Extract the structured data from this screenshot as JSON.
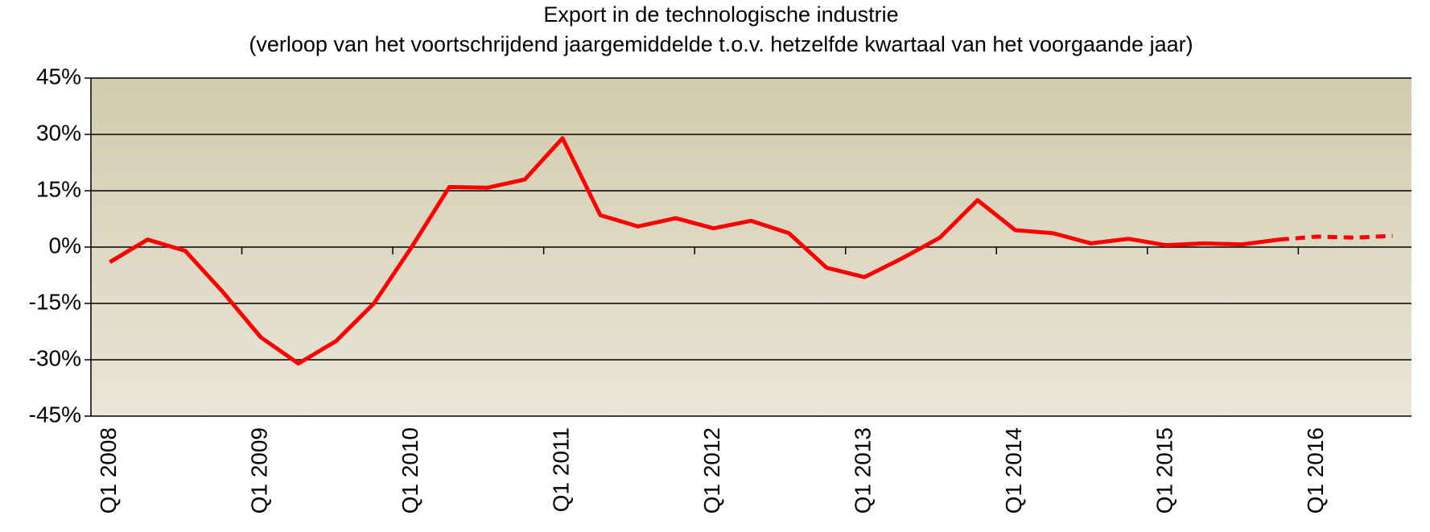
{
  "chart_data": {
    "type": "line",
    "title": "Export in de technologische industrie",
    "subtitle": "(verloop van het voortschrijdend jaargemiddelde t.o.v. hetzelfde kwartaal van het voorgaande jaar)",
    "categories": [
      "Q1 2008",
      null,
      null,
      null,
      "Q1 2009",
      null,
      null,
      null,
      "Q1 2010",
      null,
      null,
      null,
      "Q1 2011",
      null,
      null,
      null,
      "Q1 2012",
      null,
      null,
      null,
      "Q1 2013",
      null,
      null,
      null,
      "Q1 2014",
      null,
      null,
      null,
      "Q1 2015",
      null,
      null,
      null,
      "Q1 2016",
      null,
      null
    ],
    "series": [
      {
        "color": "#ff0000",
        "dashed": false,
        "values": [
          -4,
          2,
          -1,
          -12,
          -24,
          -31,
          -25,
          -15,
          0,
          16,
          15.8,
          18,
          29,
          8.5,
          5.5,
          7.7,
          5,
          7,
          3.7,
          -5.5,
          -8,
          -3,
          2.5,
          12.5,
          4.5,
          3.7,
          1,
          2.2,
          0.5,
          1,
          0.7,
          2,
          null,
          null,
          null
        ]
      },
      {
        "color": "#ff0000",
        "dashed": true,
        "values": [
          null,
          null,
          null,
          null,
          null,
          null,
          null,
          null,
          null,
          null,
          null,
          null,
          null,
          null,
          null,
          null,
          null,
          null,
          null,
          null,
          null,
          null,
          null,
          null,
          null,
          null,
          null,
          null,
          null,
          null,
          null,
          2,
          2.8,
          2.5,
          3
        ]
      }
    ],
    "ylim": [
      -45,
      45
    ],
    "yticks": [
      {
        "value": -45,
        "label": "-45%"
      },
      {
        "value": -30,
        "label": "-30%"
      },
      {
        "value": -15,
        "label": "-15%"
      },
      {
        "value": 0,
        "label": "0%"
      },
      {
        "value": 15,
        "label": "15%"
      },
      {
        "value": 30,
        "label": "30%"
      },
      {
        "value": 45,
        "label": "45%"
      }
    ],
    "grid": true
  }
}
